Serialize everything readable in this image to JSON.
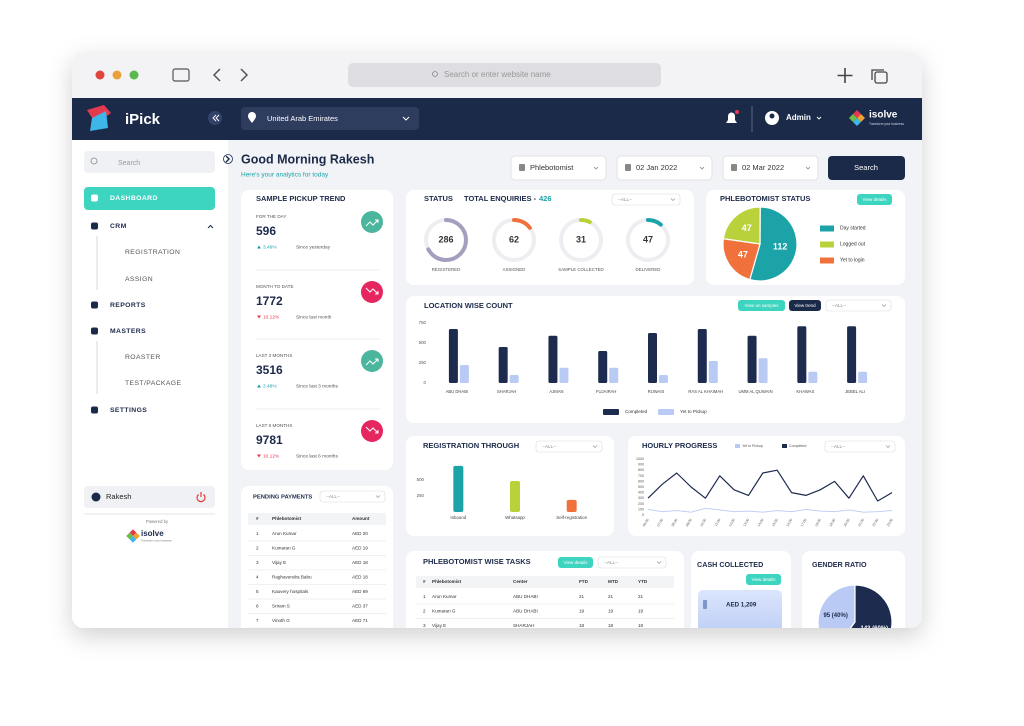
{
  "browser": {
    "address": "Search or enter website name"
  },
  "navbar": {
    "brand": "iPick",
    "location": "United Arab Emirates",
    "user": "Admin",
    "logo": "isolve",
    "tagline": "Transform your business"
  },
  "sidebar": {
    "search": "Search",
    "menu": [
      "DASHBOARD",
      "CRM",
      "REGISTRATION",
      "ASSIGN",
      "REPORTS",
      "MASTERS",
      "ROASTER",
      "TEST/PACKAGE",
      "SETTINGS"
    ],
    "user": "Rakesh",
    "powered_by": "Powered by",
    "logo": "isolve",
    "tagline": "Transform your business"
  },
  "header": {
    "greeting": "Good Morning Rakesh",
    "subtitle": "Here's your analytics for today",
    "filters": [
      "Phlebotomist",
      "02 Jan 2022",
      "02 Mar 2022"
    ],
    "button": "Search"
  },
  "pickup_trend": {
    "title": "SAMPLE PICKUP TREND",
    "items": [
      {
        "label": "FOR THE DAY",
        "value": 596,
        "change": "3.48%",
        "since": "Since yesterday"
      },
      {
        "label": "MONTH TO DATE",
        "value": 1772,
        "change": "10.12%",
        "since": "Since last month"
      },
      {
        "label": "LAST 3 MONTHS",
        "value": 3516,
        "change": "3.48%",
        "since": "Since last 3 months"
      },
      {
        "label": "LAST 6 MONTHS",
        "value": 9781,
        "change": "10.12%",
        "since": "Since last 6 months"
      }
    ]
  },
  "pending_payments": {
    "title": "PENDING PAYMENTS",
    "filter": "--ALL--",
    "columns": [
      "#",
      "Phlebotomist",
      "Amount"
    ],
    "rows": [
      [
        "1",
        "Arun Kumar",
        "AED 20"
      ],
      [
        "2",
        "Kumaran G",
        "AED 19"
      ],
      [
        "3",
        "Vijay E",
        "AED 18"
      ],
      [
        "4",
        "Raghavendra Babu",
        "AED 18"
      ],
      [
        "5",
        "Kauvery hospitals",
        "AED 69"
      ],
      [
        "6",
        "Sriram S",
        "AED 37"
      ],
      [
        "7",
        "Vinoth G",
        "AED 71"
      ]
    ]
  },
  "status": {
    "title": "STATUS",
    "total_label": "TOTAL ENQUIRIES -",
    "total": 426,
    "filter": "--ALL--",
    "items": [
      {
        "value": 286,
        "label": "REGISTERED",
        "color": "#a39fbe"
      },
      {
        "value": 62,
        "label": "ASSIGNED",
        "color": "#f0713c"
      },
      {
        "value": 31,
        "label": "SAMPLE COLLECTED",
        "color": "#b9d23c"
      },
      {
        "value": 47,
        "label": "DELIVERED",
        "color": "#1ba3a8"
      }
    ]
  },
  "tasks": {
    "title": "PHLEBOTOMIST WISE TASKS",
    "button": "View details",
    "filter": "--ALL--",
    "columns": [
      "#",
      "Phlebotomist",
      "Center",
      "FTD",
      "MTD",
      "YTD"
    ],
    "rows": [
      [
        "1",
        "Arun Kumar",
        "ABU DHABI",
        "21",
        "21",
        "21"
      ],
      [
        "2",
        "Kumaran G",
        "ABU DHABI",
        "19",
        "19",
        "19"
      ],
      [
        "3",
        "Vijay E",
        "SHARJAH",
        "18",
        "18",
        "18"
      ]
    ]
  },
  "cash": {
    "title": "CASH COLLECTED",
    "button": "View details",
    "amount": "AED 1,209"
  },
  "chart_data": [
    {
      "type": "pie",
      "title": "PHLEBOTOMIST STATUS",
      "button": "View details",
      "categories": [
        "Day started",
        "Logged out",
        "Yet to login"
      ],
      "values": [
        112,
        47,
        47
      ],
      "colors": [
        "#1ba3a8",
        "#b9d23c",
        "#f0713c"
      ]
    },
    {
      "type": "bar",
      "title": "LOCATION WISE COUNT",
      "buttons": [
        "View on samples",
        "View trend"
      ],
      "filter": "--ALL--",
      "categories": [
        "ABU DHABI",
        "SHARJAH",
        "AJMAN",
        "FUJAIRAH",
        "RUWAIS",
        "RAS AL KHAIMAH",
        "UMM AL QUWAIN",
        "KHAWAS",
        "JEBEL ALI"
      ],
      "series": [
        {
          "name": "Completed",
          "color": "#1d2b4f",
          "values": [
            675,
            450,
            590,
            400,
            625,
            675,
            590,
            710,
            710
          ]
        },
        {
          "name": "Yet to Pickup",
          "color": "#b9cbf5",
          "values": [
            225,
            100,
            190,
            190,
            100,
            275,
            310,
            140,
            140
          ]
        }
      ],
      "ylim": [
        0,
        750
      ],
      "yticks": [
        0,
        250,
        500,
        750
      ]
    },
    {
      "type": "bar",
      "title": "REGISTRATION THROUGH",
      "filter": "--ALL--",
      "categories": [
        "Inbound",
        "Whatsapp",
        "Self-registration"
      ],
      "values": [
        720,
        485,
        190
      ],
      "colors": [
        "#1ba3a8",
        "#b9d23c",
        "#f0713c"
      ],
      "ylim": [
        0,
        750
      ],
      "yticks": [
        250,
        500
      ]
    },
    {
      "type": "line",
      "title": "HOURLY PROGRESS",
      "filter": "--ALL--",
      "categories": [
        "06:00",
        "07:00",
        "08:00",
        "09:00",
        "10:00",
        "11:00",
        "12:00",
        "13:00",
        "14:00",
        "15:00",
        "16:00",
        "17:00",
        "18:00",
        "19:00",
        "20:00",
        "21:00",
        "22:00",
        "23:00"
      ],
      "series": [
        {
          "name": "Yet to Pickup",
          "color": "#b9cbf5",
          "values": [
            100,
            60,
            80,
            50,
            120,
            90,
            60,
            70,
            50,
            80,
            60,
            100,
            70,
            60,
            90,
            50,
            60,
            80
          ]
        },
        {
          "name": "Completed",
          "color": "#1d2b4f",
          "values": [
            300,
            550,
            750,
            500,
            300,
            700,
            450,
            350,
            750,
            800,
            400,
            350,
            450,
            600,
            300,
            700,
            250,
            400
          ]
        }
      ],
      "ylim": [
        0,
        1000
      ],
      "yticks": [
        0,
        100,
        200,
        300,
        400,
        500,
        600,
        700,
        800,
        900,
        1000
      ]
    },
    {
      "type": "pie",
      "title": "GENDER RATIO",
      "values": [
        95,
        143
      ],
      "value_labels": [
        "95 (40%)",
        "143 (60%)"
      ],
      "colors": [
        "#b9cbf5",
        "#1d2b4f"
      ]
    }
  ]
}
